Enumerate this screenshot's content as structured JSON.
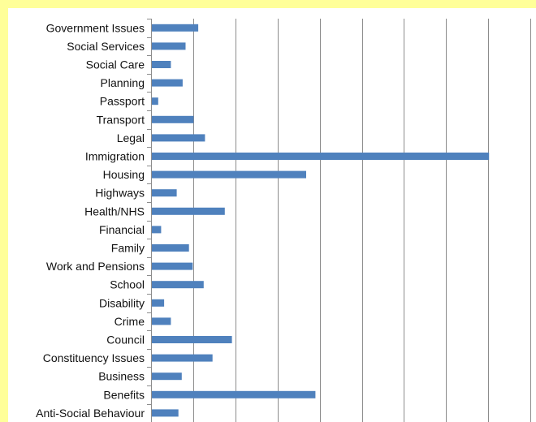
{
  "chart_data": {
    "type": "bar",
    "orientation": "horizontal",
    "categories": [
      "Government Issues",
      "Social Services",
      "Social Care",
      "Planning",
      "Passport",
      "Transport",
      "Legal",
      "Immigration",
      "Housing",
      "Highways",
      "Health/NHS",
      "Financial",
      "Family",
      "Work and Pensions",
      "School",
      "Disability",
      "Crime",
      "Council",
      "Constituency Issues",
      "Business",
      "Benefits",
      "Anti-Social Behaviour"
    ],
    "values": [
      11,
      8,
      4.5,
      7.3,
      1.5,
      9.9,
      12.6,
      80,
      36.6,
      5.9,
      17.3,
      2.2,
      8.8,
      9.7,
      12.3,
      2.9,
      4.5,
      19,
      14.4,
      7.1,
      38.8,
      6.3
    ],
    "xlim": [
      0,
      90
    ],
    "x_gridline_step": 10,
    "grid": true,
    "bar_color": "#4f81bd",
    "background_color": "#ffff99",
    "plot_background": "#ffffff",
    "gridline_color": "#8c8c8c"
  }
}
